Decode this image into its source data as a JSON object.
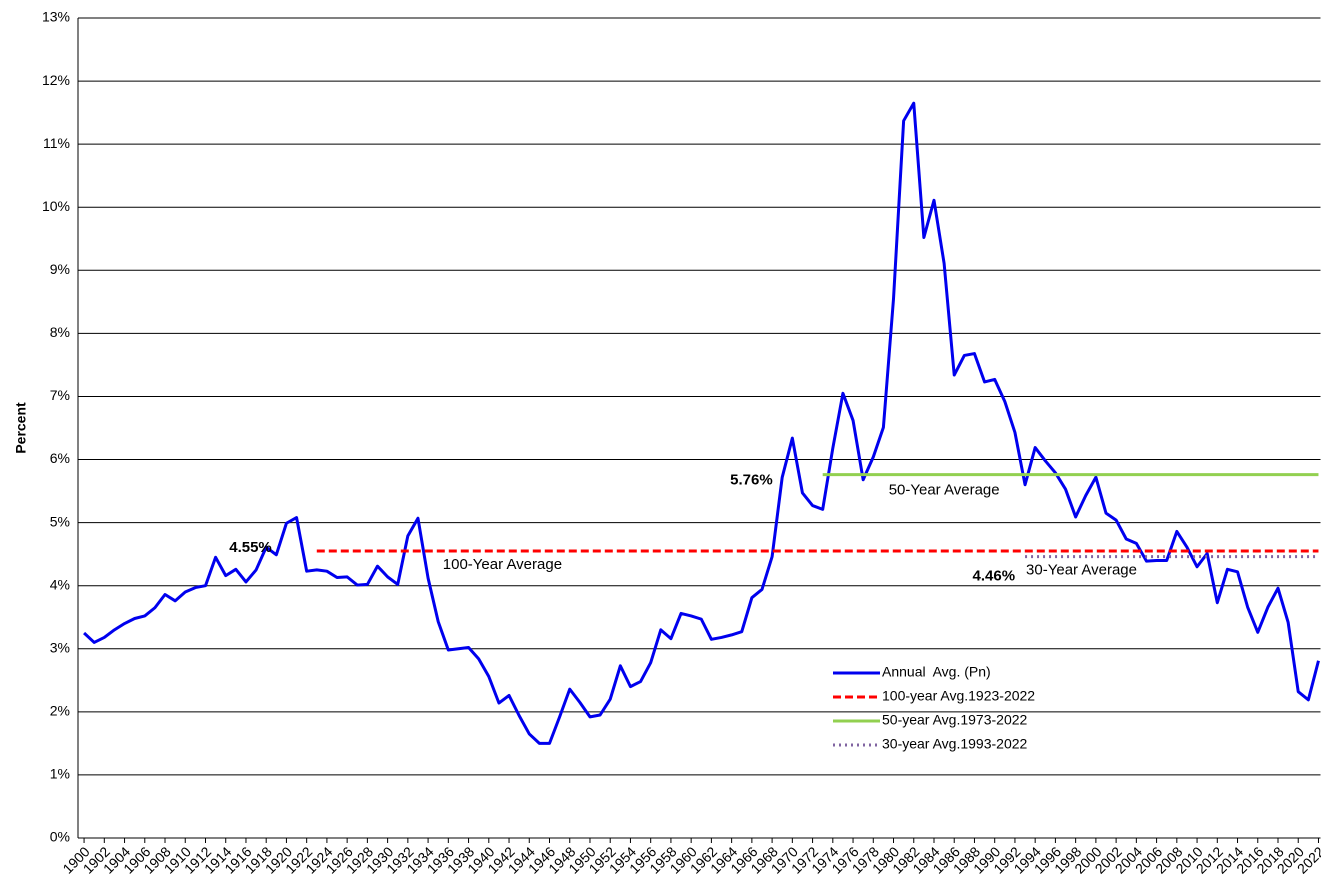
{
  "chart_data": {
    "type": "line",
    "ylabel": "Percent",
    "x": [
      1900,
      1901,
      1902,
      1903,
      1904,
      1905,
      1906,
      1907,
      1908,
      1909,
      1910,
      1911,
      1912,
      1913,
      1914,
      1915,
      1916,
      1917,
      1918,
      1919,
      1920,
      1921,
      1922,
      1923,
      1924,
      1925,
      1926,
      1927,
      1928,
      1929,
      1930,
      1931,
      1932,
      1933,
      1934,
      1935,
      1936,
      1937,
      1938,
      1939,
      1940,
      1941,
      1942,
      1943,
      1944,
      1945,
      1946,
      1947,
      1948,
      1949,
      1950,
      1951,
      1952,
      1953,
      1954,
      1955,
      1956,
      1957,
      1958,
      1959,
      1960,
      1961,
      1962,
      1963,
      1964,
      1965,
      1966,
      1967,
      1968,
      1969,
      1970,
      1971,
      1972,
      1973,
      1974,
      1975,
      1976,
      1977,
      1978,
      1979,
      1980,
      1981,
      1982,
      1983,
      1984,
      1985,
      1986,
      1987,
      1988,
      1989,
      1990,
      1991,
      1992,
      1993,
      1994,
      1995,
      1996,
      1997,
      1998,
      1999,
      2000,
      2001,
      2002,
      2003,
      2004,
      2005,
      2006,
      2007,
      2008,
      2009,
      2010,
      2011,
      2012,
      2013,
      2014,
      2015,
      2016,
      2017,
      2018,
      2019,
      2020,
      2021,
      2022
    ],
    "series": [
      {
        "name": "Annual  Avg. (Pn)",
        "color": "#0000ee",
        "values": [
          3.25,
          3.1,
          3.18,
          3.3,
          3.4,
          3.48,
          3.52,
          3.65,
          3.86,
          3.76,
          3.9,
          3.97,
          4.0,
          4.45,
          4.16,
          4.26,
          4.06,
          4.25,
          4.61,
          4.49,
          4.99,
          5.08,
          4.23,
          4.25,
          4.23,
          4.13,
          4.14,
          4.01,
          4.02,
          4.31,
          4.14,
          4.02,
          4.79,
          5.07,
          4.12,
          3.43,
          2.98,
          3.0,
          3.02,
          2.84,
          2.56,
          2.14,
          2.26,
          1.94,
          1.65,
          1.5,
          1.5,
          1.92,
          2.36,
          2.15,
          1.92,
          1.95,
          2.2,
          2.73,
          2.4,
          2.48,
          2.78,
          3.3,
          3.16,
          3.56,
          3.52,
          3.47,
          3.15,
          3.18,
          3.22,
          3.27,
          3.81,
          3.94,
          4.46,
          5.72,
          6.34,
          5.47,
          5.27,
          5.21,
          6.18,
          7.05,
          6.62,
          5.68,
          6.04,
          6.51,
          8.55,
          11.37,
          11.65,
          9.52,
          10.11,
          9.11,
          7.34,
          7.65,
          7.68,
          7.23,
          7.27,
          6.92,
          6.43,
          5.6,
          6.19,
          5.98,
          5.79,
          5.53,
          5.09,
          5.43,
          5.72,
          5.15,
          5.04,
          4.74,
          4.67,
          4.39,
          4.4,
          4.4,
          4.86,
          4.61,
          4.3,
          4.51,
          3.73,
          4.26,
          4.22,
          3.66,
          3.26,
          3.66,
          3.96,
          3.42,
          2.32,
          2.19,
          2.81
        ]
      }
    ],
    "reference_lines": [
      {
        "name": "100-year Avg.1923-2022",
        "color": "#ff0000",
        "style": "dashed",
        "value": 4.55,
        "value_label": "4.55%",
        "label": "100-Year Average",
        "x": [
          1923,
          2022
        ]
      },
      {
        "name": "50-year Avg.1973-2022",
        "color": "#92d050",
        "style": "solid",
        "value": 5.76,
        "value_label": "5.76%",
        "label": "50-Year Average",
        "x": [
          1973,
          2022
        ]
      },
      {
        "name": "30-year Avg.1993-2022",
        "color": "#8064a2",
        "style": "dotted",
        "value": 4.46,
        "value_label": "4.46%",
        "label": "30-Year Average",
        "x": [
          1993,
          2022
        ]
      }
    ],
    "xlim": [
      1899.4,
      2022.2
    ],
    "xticks": [
      1900,
      1902,
      1904,
      1906,
      1908,
      1910,
      1912,
      1914,
      1916,
      1918,
      1920,
      1922,
      1924,
      1926,
      1928,
      1930,
      1932,
      1934,
      1936,
      1938,
      1940,
      1942,
      1944,
      1946,
      1948,
      1950,
      1952,
      1954,
      1956,
      1958,
      1960,
      1962,
      1964,
      1966,
      1968,
      1970,
      1972,
      1974,
      1976,
      1978,
      1980,
      1982,
      1984,
      1986,
      1988,
      1990,
      1992,
      1994,
      1996,
      1998,
      2000,
      2002,
      2004,
      2006,
      2008,
      2010,
      2012,
      2014,
      2016,
      2018,
      2020,
      2022
    ],
    "ylim": [
      0,
      13
    ],
    "yticks": [
      {
        "value": 0,
        "label": "0%"
      },
      {
        "value": 1,
        "label": "1%"
      },
      {
        "value": 2,
        "label": "2%"
      },
      {
        "value": 3,
        "label": "3%"
      },
      {
        "value": 4,
        "label": "4%"
      },
      {
        "value": 5,
        "label": "5%"
      },
      {
        "value": 6,
        "label": "6%"
      },
      {
        "value": 7,
        "label": "7%"
      },
      {
        "value": 8,
        "label": "8%"
      },
      {
        "value": 9,
        "label": "9%"
      },
      {
        "value": 10,
        "label": "10%"
      },
      {
        "value": 11,
        "label": "11%"
      },
      {
        "value": 12,
        "label": "12%"
      },
      {
        "value": 13,
        "label": "13%"
      }
    ],
    "grid": true,
    "legend": "lower right"
  }
}
